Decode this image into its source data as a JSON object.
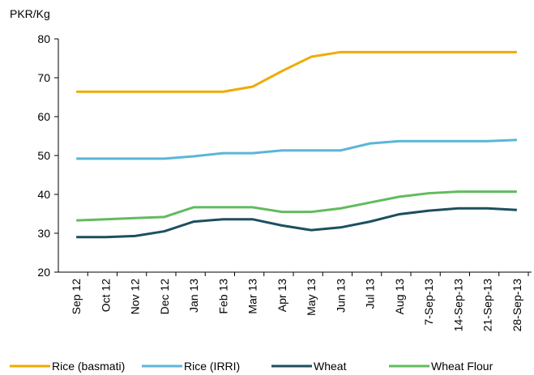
{
  "chart_data": {
    "type": "line",
    "y_axis_label": "PKR/Kg",
    "categories": [
      "Sep 12",
      "Oct 12",
      "Nov 12",
      "Dec 12",
      "Jan 13",
      "Feb 13",
      "Mar 13",
      "Apr 13",
      "May 13",
      "Jun 13",
      "Jul 13",
      "Aug 13",
      "7-Sep-13",
      "14-Sep-13",
      "21-Sep-13",
      "28-Sep-13"
    ],
    "series": [
      {
        "name": "Rice (basmati)",
        "color": "#f0aa00",
        "values": [
          66.4,
          66.4,
          66.4,
          66.4,
          66.4,
          66.4,
          67.7,
          71.7,
          75.4,
          76.6,
          76.6,
          76.6,
          76.6,
          76.6,
          76.6,
          76.6
        ]
      },
      {
        "name": "Rice (IRRI)",
        "color": "#5ab6d8",
        "values": [
          49.2,
          49.2,
          49.2,
          49.2,
          49.8,
          50.6,
          50.6,
          51.3,
          51.3,
          51.3,
          53.1,
          53.7,
          53.7,
          53.7,
          53.7,
          54.0
        ]
      },
      {
        "name": "Wheat",
        "color": "#1c4f5f",
        "values": [
          29.0,
          29.0,
          29.3,
          30.5,
          33.0,
          33.6,
          33.6,
          32.0,
          30.8,
          31.5,
          33.0,
          34.9,
          35.8,
          36.4,
          36.4,
          36.0
        ]
      },
      {
        "name": "Wheat Flour",
        "color": "#62bb5e",
        "values": [
          33.3,
          33.6,
          33.9,
          34.2,
          36.7,
          36.7,
          36.7,
          35.5,
          35.5,
          36.4,
          37.9,
          39.4,
          40.3,
          40.7,
          40.7,
          40.7
        ]
      }
    ],
    "ylim": [
      20,
      80
    ],
    "yticks": [
      20,
      30,
      40,
      50,
      60,
      70,
      80
    ],
    "grid": false
  }
}
